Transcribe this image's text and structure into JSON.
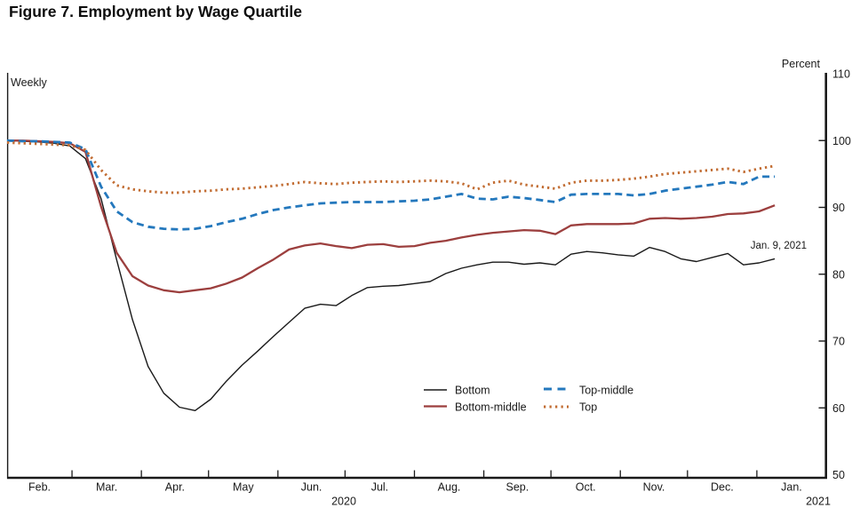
{
  "title": "Figure 7. Employment by Wage Quartile",
  "chart_data": {
    "type": "line",
    "frequency_label": "Weekly",
    "unit_label": "Percent",
    "annotation": "Jan. 9, 2021",
    "grid": false,
    "legend_position": "inside-lower-center",
    "ylim": [
      50,
      110
    ],
    "y_ticks": [
      110,
      100,
      90,
      80,
      70,
      60,
      50
    ],
    "x_month_labels": [
      "Feb.",
      "Mar.",
      "Apr.",
      "May",
      "Jun.",
      "Jul.",
      "Aug.",
      "Sep.",
      "Oct.",
      "Nov.",
      "Dec.",
      "Jan."
    ],
    "year_labels": [
      "2020",
      "2021"
    ],
    "x": [
      "Feb 1",
      "Feb 8",
      "Feb 15",
      "Feb 22",
      "Feb 29",
      "Mar 7",
      "Mar 14",
      "Mar 21",
      "Mar 28",
      "Apr 4",
      "Apr 11",
      "Apr 18",
      "Apr 25",
      "May 2",
      "May 9",
      "May 16",
      "May 23",
      "May 30",
      "Jun 6",
      "Jun 13",
      "Jun 20",
      "Jun 27",
      "Jul 4",
      "Jul 11",
      "Jul 18",
      "Jul 25",
      "Aug 1",
      "Aug 8",
      "Aug 15",
      "Aug 22",
      "Aug 29",
      "Sep 5",
      "Sep 12",
      "Sep 19",
      "Sep 26",
      "Oct 3",
      "Oct 10",
      "Oct 17",
      "Oct 24",
      "Oct 31",
      "Nov 7",
      "Nov 14",
      "Nov 21",
      "Nov 28",
      "Dec 5",
      "Dec 12",
      "Dec 19",
      "Dec 26",
      "Jan 2",
      "Jan 9"
    ],
    "series": [
      {
        "name": "Bottom",
        "style": "solid",
        "color": "#1a1a1a",
        "values": [
          100.0,
          99.9,
          99.8,
          99.6,
          99.2,
          97.3,
          91.3,
          82.1,
          73.2,
          66.2,
          62.2,
          60.1,
          59.6,
          61.3,
          64.0,
          66.4,
          68.5,
          70.7,
          72.8,
          74.9,
          75.5,
          75.3,
          76.8,
          78.0,
          78.2,
          78.3,
          78.6,
          78.9,
          80.1,
          80.9,
          81.4,
          81.8,
          81.8,
          81.5,
          81.7,
          81.4,
          83.0,
          83.4,
          83.2,
          82.9,
          82.7,
          84.0,
          83.4,
          82.3,
          81.9,
          82.5,
          83.1,
          81.4,
          81.7,
          82.3
        ]
      },
      {
        "name": "Bottom-middle",
        "style": "solid",
        "color": "#9c3f3e",
        "values": [
          100.0,
          100.0,
          99.9,
          99.8,
          99.6,
          98.3,
          90.1,
          83.2,
          79.7,
          78.3,
          77.6,
          77.3,
          77.6,
          77.9,
          78.6,
          79.5,
          80.9,
          82.2,
          83.7,
          84.3,
          84.6,
          84.2,
          83.9,
          84.4,
          84.5,
          84.1,
          84.2,
          84.7,
          85.0,
          85.5,
          85.9,
          86.2,
          86.4,
          86.6,
          86.5,
          86.0,
          87.3,
          87.5,
          87.5,
          87.5,
          87.6,
          88.3,
          88.4,
          88.3,
          88.4,
          88.6,
          89.0,
          89.1,
          89.4,
          90.3
        ]
      },
      {
        "name": "Top-middle",
        "style": "dashed",
        "color": "#2478bd",
        "values": [
          100.0,
          99.9,
          99.9,
          99.8,
          99.7,
          98.7,
          93.1,
          89.4,
          87.8,
          87.1,
          86.8,
          86.7,
          86.8,
          87.2,
          87.8,
          88.3,
          89.0,
          89.6,
          90.0,
          90.3,
          90.6,
          90.7,
          90.8,
          90.8,
          90.8,
          90.9,
          91.0,
          91.2,
          91.6,
          92.0,
          91.3,
          91.2,
          91.6,
          91.4,
          91.1,
          90.8,
          91.9,
          92.0,
          92.0,
          92.0,
          91.8,
          92.0,
          92.5,
          92.8,
          93.1,
          93.4,
          93.8,
          93.5,
          94.6,
          94.6
        ]
      },
      {
        "name": "Top",
        "style": "dotted",
        "color": "#c26d33",
        "values": [
          99.7,
          99.6,
          99.5,
          99.4,
          99.3,
          98.6,
          95.6,
          93.3,
          92.7,
          92.4,
          92.2,
          92.2,
          92.4,
          92.5,
          92.7,
          92.8,
          93.0,
          93.2,
          93.5,
          93.8,
          93.6,
          93.5,
          93.7,
          93.8,
          93.9,
          93.8,
          93.9,
          94.0,
          93.9,
          93.6,
          92.7,
          93.7,
          94.0,
          93.4,
          93.1,
          92.8,
          93.7,
          94.0,
          94.0,
          94.1,
          94.3,
          94.6,
          95.0,
          95.2,
          95.4,
          95.6,
          95.8,
          95.3,
          95.8,
          96.2
        ]
      }
    ]
  }
}
